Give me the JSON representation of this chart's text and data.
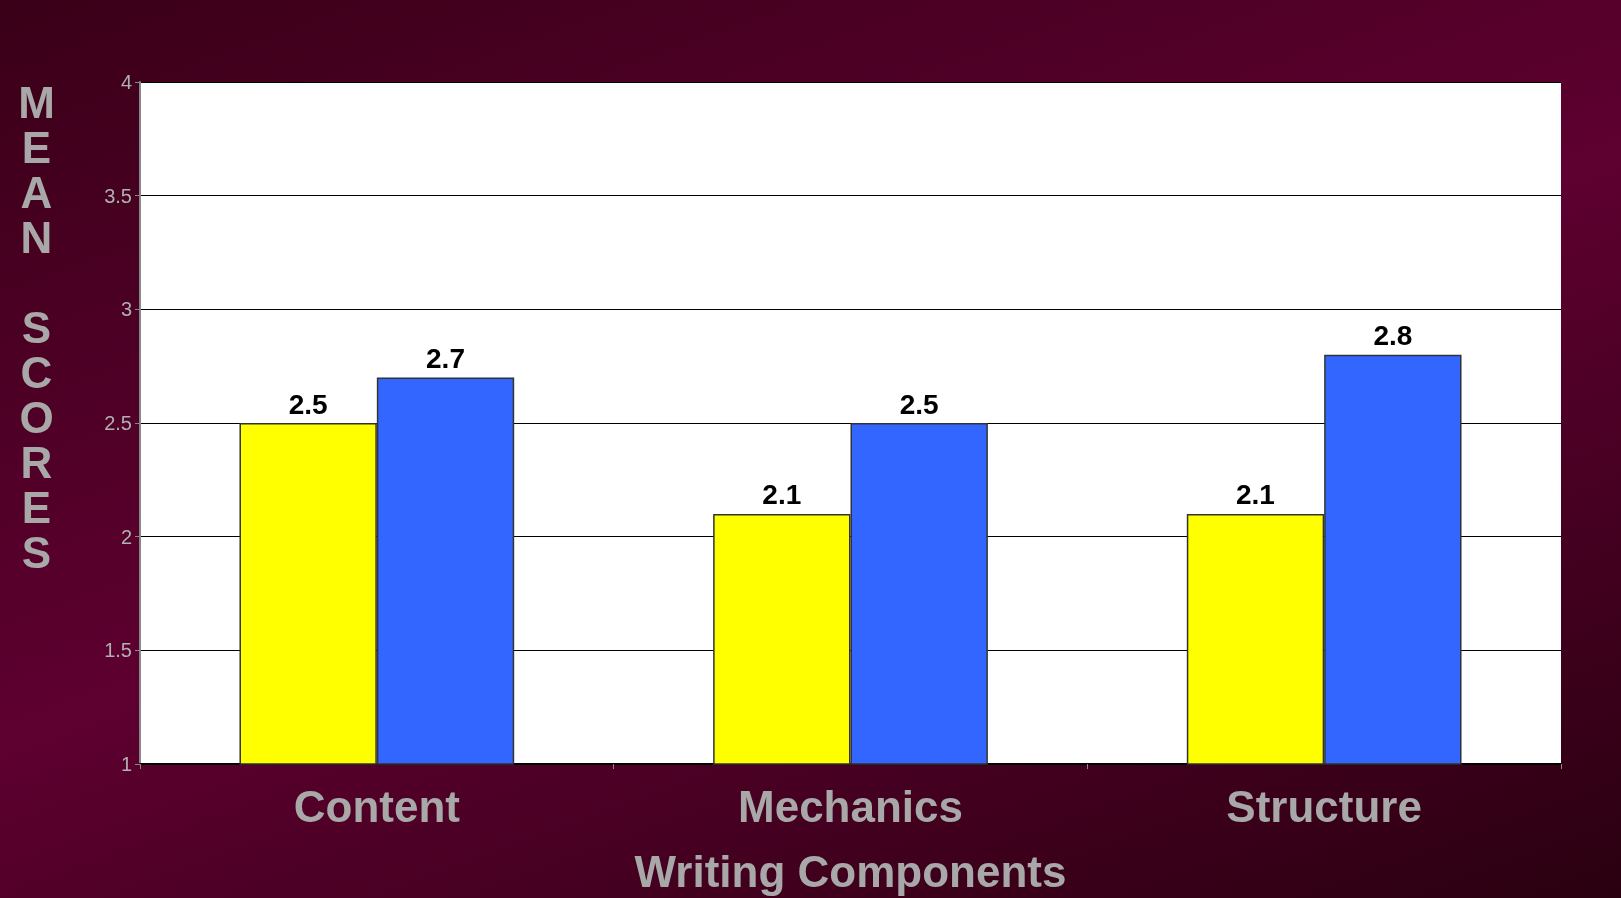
{
  "chart_data": {
    "type": "bar",
    "xlabel": "Writing Components",
    "ylabel": "MEAN SCORES",
    "categories": [
      "Content",
      "Mechanics",
      "Structure"
    ],
    "series": [
      {
        "color": "#ffff00",
        "values": [
          2.5,
          2.1,
          2.1
        ]
      },
      {
        "color": "#3366ff",
        "values": [
          2.7,
          2.5,
          2.8
        ]
      }
    ],
    "ylim": [
      1,
      4
    ],
    "yticks": [
      1,
      1.5,
      2,
      2.5,
      3,
      3.5,
      4
    ],
    "grid": "y",
    "data_labels": true
  }
}
